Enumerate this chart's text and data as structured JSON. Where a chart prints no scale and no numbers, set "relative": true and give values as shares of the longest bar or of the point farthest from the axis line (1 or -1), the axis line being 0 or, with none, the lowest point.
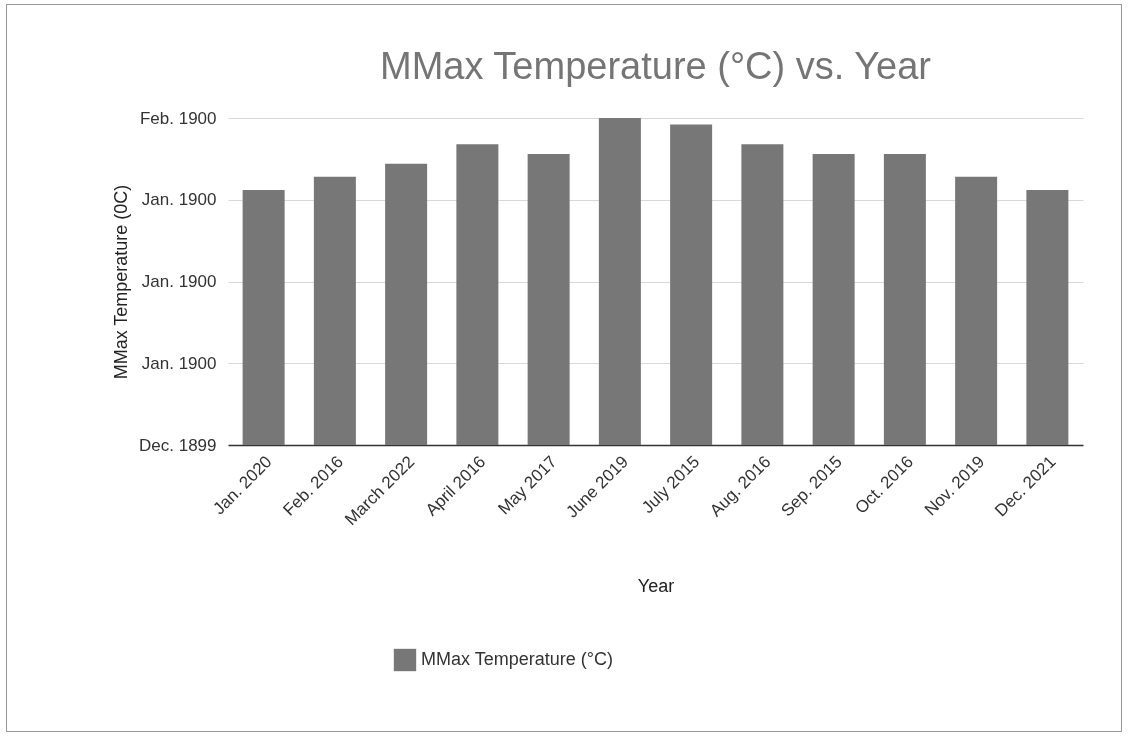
{
  "chart_data": {
    "type": "bar",
    "title": "MMax Temperature (°C) vs. Year",
    "xlabel": "Year",
    "ylabel": "MMax Temperature (0C)",
    "categories": [
      "Jan. 2020",
      "Feb. 2016",
      "March 2022",
      "April 2016",
      "May 2017",
      "June 2019",
      "July 2015",
      "Aug. 2016",
      "Sep. 2015",
      "Oct. 2016",
      "Nov. 2019",
      "Dec. 2021"
    ],
    "series": [
      {
        "name": "MMax Temperature (°C)",
        "color": "#777777",
        "values": [
          0.78,
          0.82,
          0.86,
          0.92,
          0.89,
          1,
          0.98,
          0.92,
          0.89,
          0.89,
          0.82,
          0.78
        ]
      }
    ],
    "relative": true,
    "annotations": [
      "Dec. 1899",
      "Jan. 1900",
      "Jan. 1900",
      "Jan. 1900",
      "Feb. 1900"
    ],
    "grid": "y",
    "legend": "bottom"
  }
}
